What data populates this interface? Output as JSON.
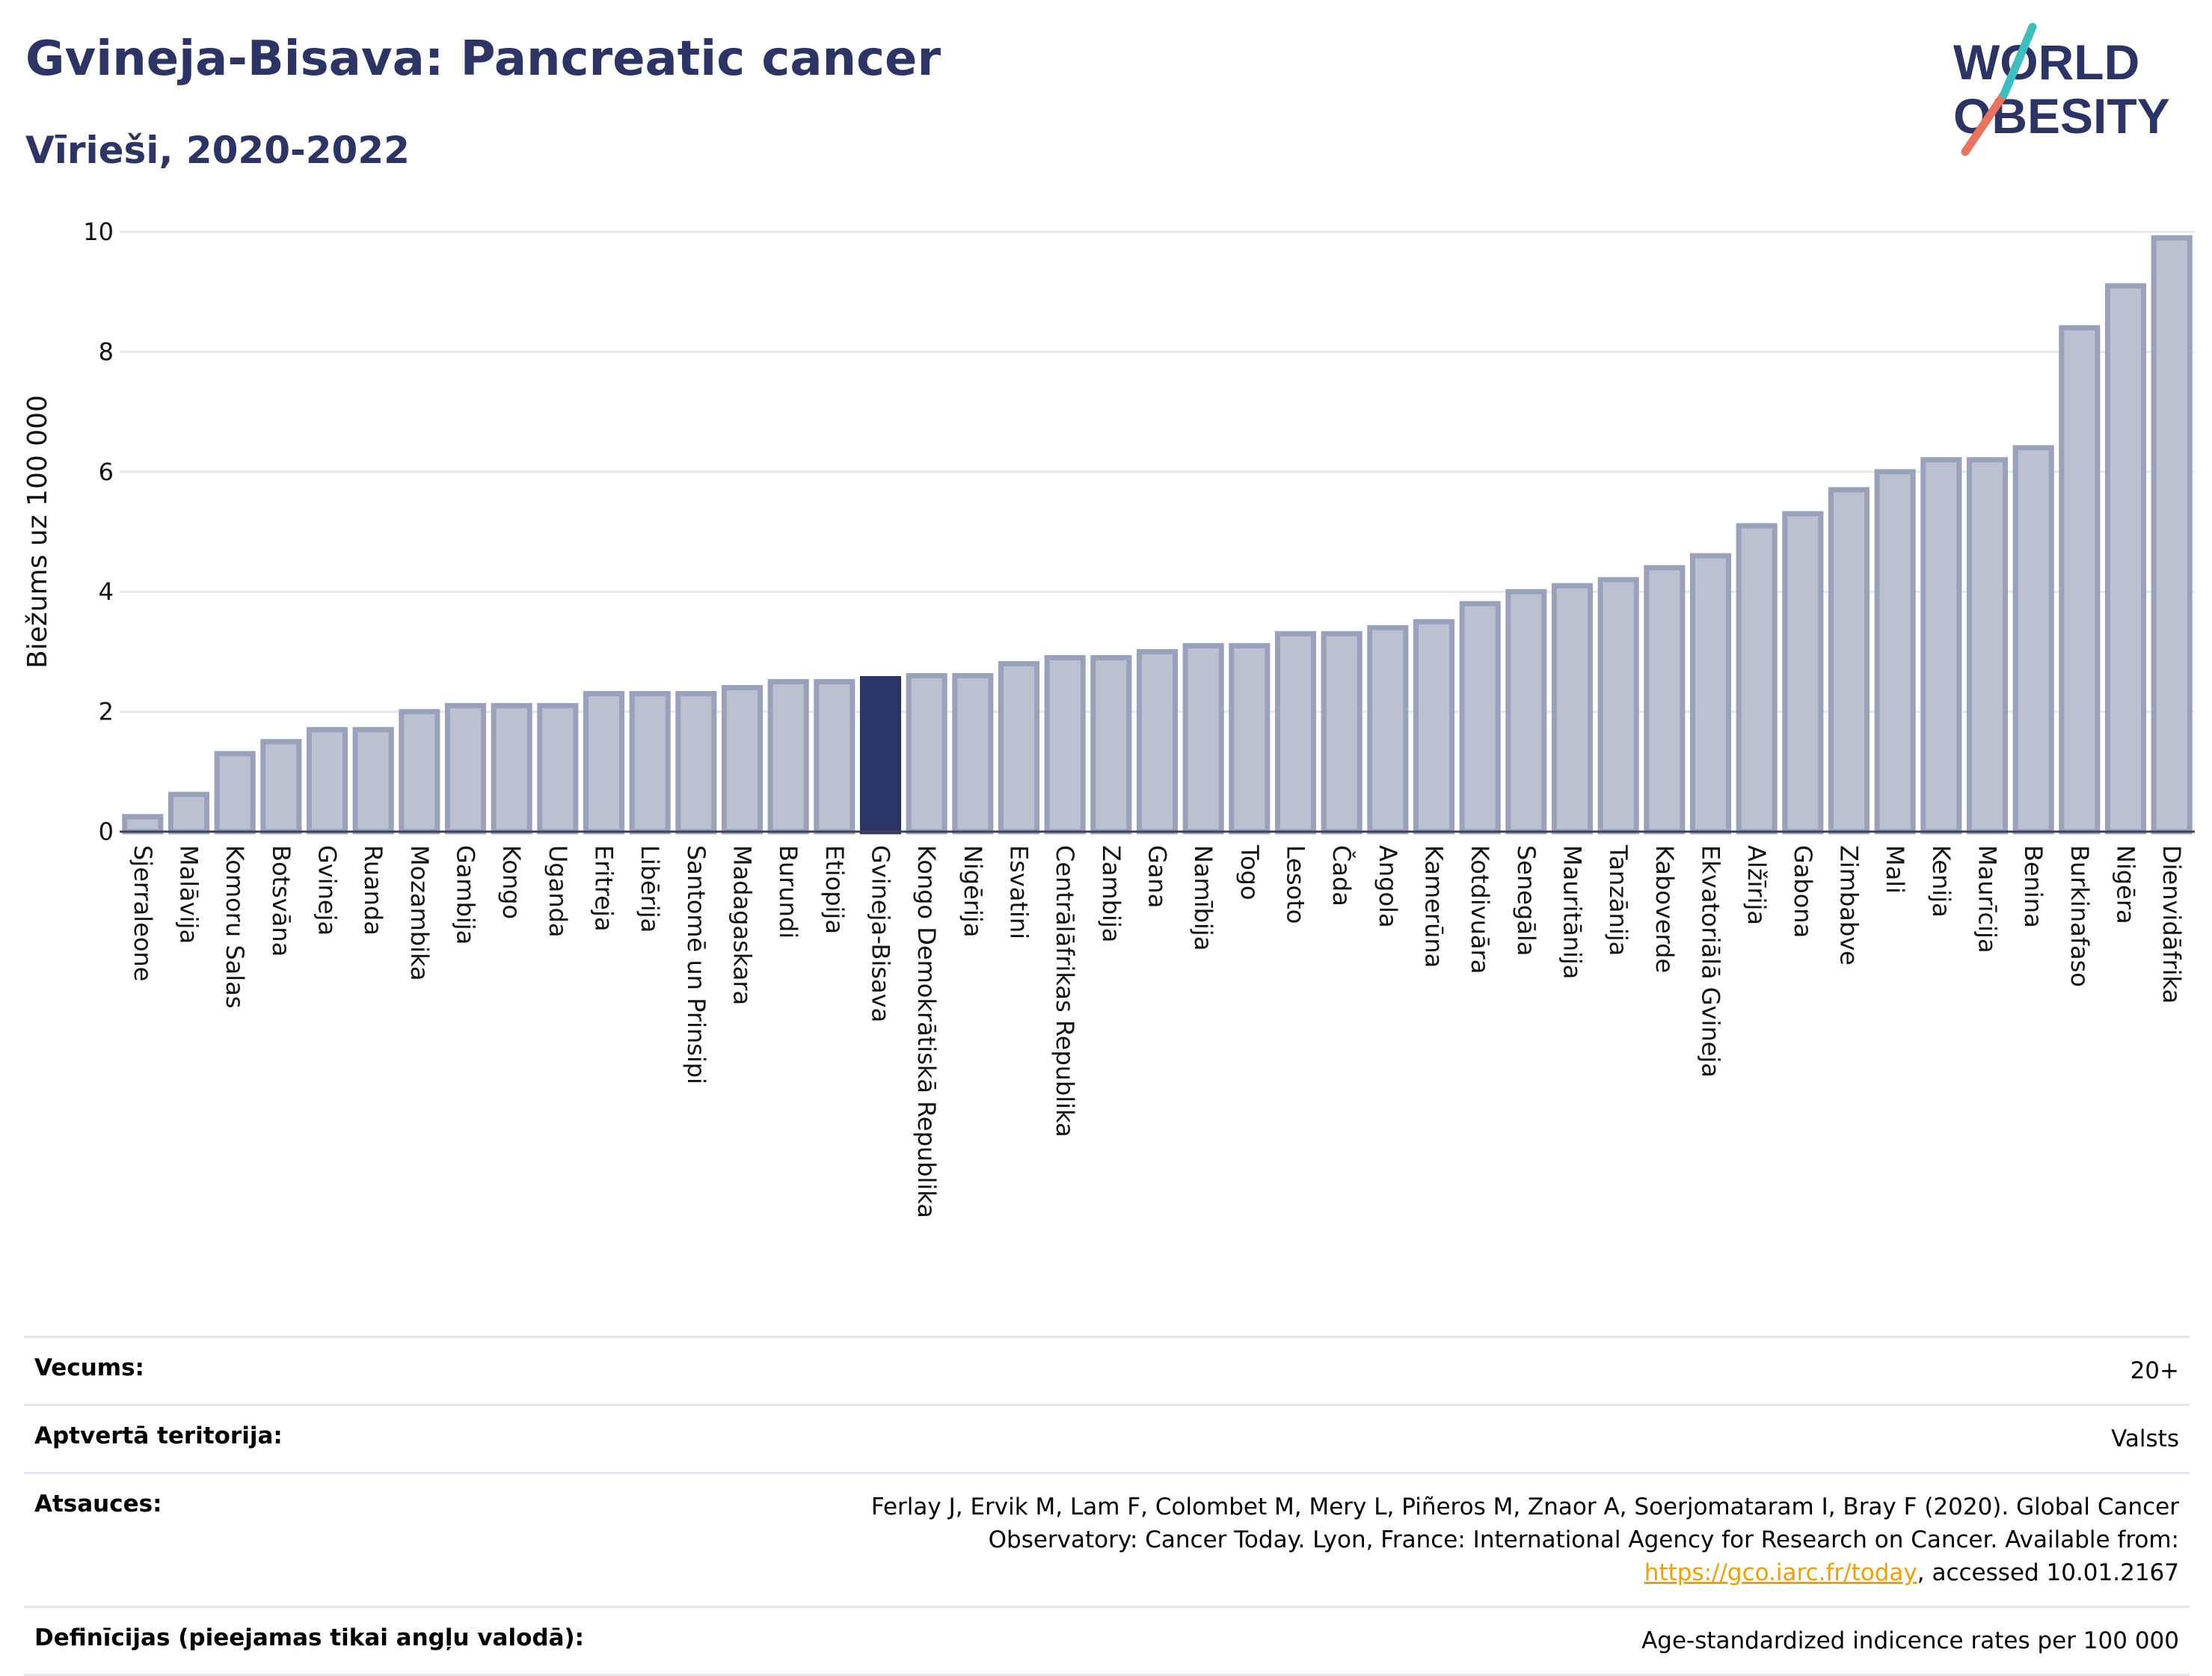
{
  "header": {
    "title": "Gvineja-Bisava: Pancreatic cancer",
    "subtitle": "Vīrieši, 2020-2022",
    "logo_line1": "WORLD",
    "logo_line2": "OBESITY"
  },
  "colors": {
    "highlight": "#2b3464",
    "bar": "#bcc1d0",
    "bar_outline": "#9aa1bb",
    "logo_teal": "#3bbfbf",
    "logo_red": "#e8735f"
  },
  "chart_data": {
    "type": "bar",
    "ylabel": "Biežums uz 100 000",
    "ylim": [
      0,
      10
    ],
    "yticks": [
      0,
      2,
      4,
      6,
      8,
      10
    ],
    "grid": true,
    "highlight": "Gvineja-Bisava",
    "categories": [
      "Sjerraleone",
      "Malāvija",
      "Komoru Salas",
      "Botsvāna",
      "Gvineja",
      "Ruanda",
      "Mozambika",
      "Gambija",
      "Kongo",
      "Uganda",
      "Eritreja",
      "Libērija",
      "Santomē un Prinsipi",
      "Madagaskara",
      "Burundi",
      "Etiopija",
      "Gvineja-Bisava",
      "Kongo Demokrātiskā Republika",
      "Nigērija",
      "Esvatini",
      "Centrālāfrikas Republika",
      "Zambija",
      "Gana",
      "Namībija",
      "Togo",
      "Lesoto",
      "Čada",
      "Angola",
      "Kamerūna",
      "Kotdivuāra",
      "Senegāla",
      "Mauritānija",
      "Tanzānija",
      "Kaboverde",
      "Ekvatoriālā Gvineja",
      "Alžīrija",
      "Gabona",
      "Zimbabve",
      "Mali",
      "Kenija",
      "Maurīcija",
      "Benina",
      "Burkinafaso",
      "Nigēra",
      "Dienvidāfrika"
    ],
    "values": [
      0.25,
      0.62,
      1.3,
      1.5,
      1.7,
      1.7,
      2.0,
      2.1,
      2.1,
      2.1,
      2.3,
      2.3,
      2.3,
      2.4,
      2.5,
      2.5,
      2.55,
      2.6,
      2.6,
      2.8,
      2.9,
      2.9,
      3.0,
      3.1,
      3.1,
      3.3,
      3.3,
      3.4,
      3.5,
      3.8,
      4.0,
      4.1,
      4.2,
      4.4,
      4.6,
      5.1,
      5.3,
      5.7,
      6.0,
      6.2,
      6.2,
      6.4,
      8.4,
      9.1,
      9.9
    ]
  },
  "meta": {
    "rows": [
      {
        "label": "Vecums:",
        "value": "20+"
      },
      {
        "label": "Aptvertā teritorija:",
        "value": "Valsts"
      }
    ],
    "ref_label": "Atsauces:",
    "ref_text_1": "Ferlay J, Ervik M, Lam F, Colombet M, Mery L, Piñeros M, Znaor A, Soerjomataram I, Bray F (2020). Global Cancer Observatory: Cancer Today. Lyon, France: International Agency for Research on Cancer. Available from: ",
    "ref_link": "https://gco.iarc.fr/today",
    "ref_text_2": ", accessed 10.01.2167",
    "def_label": "Definīcijas (pieejamas tikai angļu valodā):",
    "def_value": "Age-standardized indicence rates per 100 000"
  }
}
